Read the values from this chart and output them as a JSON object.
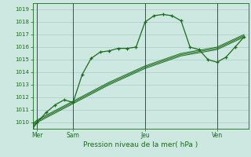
{
  "background_color": "#cce8e0",
  "grid_color": "#aacccc",
  "line_color": "#1a6b1a",
  "title": "Pression niveau de la mer( hPa )",
  "x_ticks": [
    0,
    24,
    72,
    120
  ],
  "x_tick_labels": [
    "Mer",
    "Sam",
    "Jeu",
    "Ven"
  ],
  "ylim": [
    1009.5,
    1019.5
  ],
  "yticks": [
    1010,
    1011,
    1012,
    1013,
    1014,
    1015,
    1016,
    1017,
    1018,
    1019
  ],
  "xlim": [
    -3,
    141
  ],
  "series1_x": [
    -3,
    0,
    6,
    12,
    18,
    24,
    30,
    36,
    42,
    48,
    54,
    60,
    66,
    72,
    78,
    84,
    90,
    96,
    102,
    108,
    114,
    120,
    126,
    132,
    138
  ],
  "series1_y": [
    1009.5,
    1010.0,
    1010.8,
    1011.4,
    1011.8,
    1011.6,
    1013.8,
    1015.1,
    1015.6,
    1015.7,
    1015.9,
    1015.9,
    1016.0,
    1018.0,
    1018.5,
    1018.6,
    1018.5,
    1018.1,
    1016.0,
    1015.8,
    1015.0,
    1014.8,
    1015.2,
    1016.0,
    1016.8
  ],
  "series2_x": [
    -3,
    0,
    24,
    48,
    72,
    96,
    120,
    138
  ],
  "series2_y": [
    1009.7,
    1010.0,
    1011.5,
    1013.0,
    1014.3,
    1015.3,
    1015.8,
    1016.8
  ],
  "series3_x": [
    -3,
    0,
    24,
    48,
    72,
    96,
    120,
    138
  ],
  "series3_y": [
    1009.8,
    1010.1,
    1011.6,
    1013.1,
    1014.4,
    1015.4,
    1015.9,
    1016.9
  ],
  "series4_x": [
    -3,
    0,
    24,
    48,
    72,
    96,
    120,
    138
  ],
  "series4_y": [
    1009.9,
    1010.2,
    1011.7,
    1013.2,
    1014.5,
    1015.5,
    1016.0,
    1017.0
  ],
  "vline_positions": [
    0,
    24,
    72,
    120
  ]
}
